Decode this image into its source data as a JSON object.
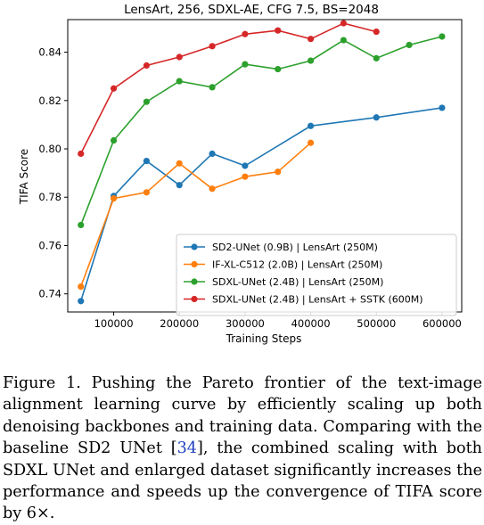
{
  "chart_data": {
    "type": "line",
    "title": "LensArt, 256, SDXL-AE, CFG 7.5, BS=2048",
    "xlabel": "Training Steps",
    "ylabel": "TIFA Score",
    "xlim": [
      30000,
      630000
    ],
    "ylim": [
      0.7325,
      0.8535
    ],
    "xticks": [
      100000,
      200000,
      300000,
      400000,
      500000,
      600000
    ],
    "yticks": [
      0.74,
      0.76,
      0.78,
      0.8,
      0.82,
      0.84
    ],
    "xtick_labels": [
      "100000",
      "200000",
      "300000",
      "400000",
      "500000",
      "600000"
    ],
    "ytick_labels": [
      "0.74",
      "0.76",
      "0.78",
      "0.80",
      "0.82",
      "0.84"
    ],
    "grid": false,
    "legend_position": "lower-right",
    "series": [
      {
        "name": "SD2-UNet (0.9B) | LensArt (250M)",
        "color": "#1f77b4",
        "x": [
          50000,
          100000,
          150000,
          200000,
          250000,
          300000,
          400000,
          500000,
          600000
        ],
        "y": [
          0.737,
          0.7805,
          0.795,
          0.785,
          0.798,
          0.793,
          0.8095,
          0.813,
          0.817
        ]
      },
      {
        "name": "IF-XL-C512 (2.0B) | LensArt (250M)",
        "color": "#ff7f0e",
        "x": [
          50000,
          100000,
          150000,
          200000,
          250000,
          300000,
          350000,
          400000
        ],
        "y": [
          0.743,
          0.7795,
          0.782,
          0.794,
          0.7835,
          0.7885,
          0.7905,
          0.8025
        ]
      },
      {
        "name": "SDXL-UNet (2.4B) | LensArt (250M)",
        "color": "#2ca02c",
        "x": [
          50000,
          100000,
          150000,
          200000,
          250000,
          300000,
          350000,
          400000,
          450000,
          500000,
          550000,
          600000
        ],
        "y": [
          0.7685,
          0.8035,
          0.8195,
          0.828,
          0.8255,
          0.835,
          0.833,
          0.8365,
          0.845,
          0.8375,
          0.843,
          0.8465
        ]
      },
      {
        "name": "SDXL-UNet (2.4B) | LensArt + SSTK (600M)",
        "color": "#d62728",
        "x": [
          50000,
          100000,
          150000,
          200000,
          250000,
          300000,
          350000,
          400000,
          450000,
          500000
        ],
        "y": [
          0.798,
          0.825,
          0.8345,
          0.838,
          0.8425,
          0.8475,
          0.849,
          0.8455,
          0.852,
          0.8485
        ]
      }
    ]
  },
  "caption": {
    "prefix": "Figure 1. Pushing the Pareto frontier of the text-image alignment learning curve by efficiently scaling up both denoising backbones and training data. Comparing with the baseline SD2 UNet [",
    "citation": "34",
    "suffix": "], the combined scaling with both SDXL UNet and enlarged dataset significantly increases the performance and speeds up the convergence of TIFA score by 6×."
  }
}
